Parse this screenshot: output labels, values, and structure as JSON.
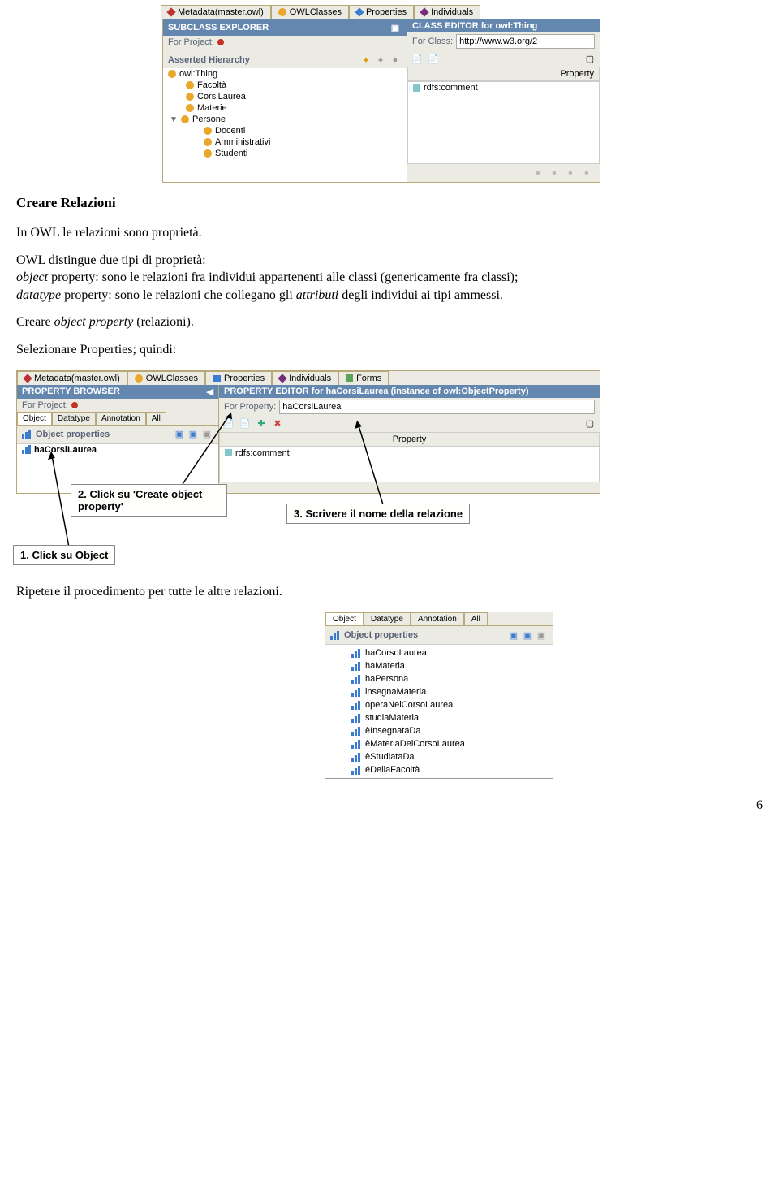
{
  "screenshot1": {
    "tabs": [
      {
        "label": "Metadata(master.owl)",
        "icon_color": "#b33"
      },
      {
        "label": "OWLClasses",
        "icon_color": "#e9a72b"
      },
      {
        "label": "Properties",
        "icon_color": "#3b7ccf"
      },
      {
        "label": "Individuals",
        "icon_color": "#7b2b7b"
      }
    ],
    "left_panel": {
      "title": "SUBCLASS EXPLORER",
      "for_project_label": "For Project:",
      "section": "Asserted Hierarchy",
      "tree": [
        {
          "label": "owl:Thing",
          "indent": 0,
          "expand": true
        },
        {
          "label": "Facoltà",
          "indent": 1
        },
        {
          "label": "CorsiLaurea",
          "indent": 1
        },
        {
          "label": "Materie",
          "indent": 1
        },
        {
          "label": "Persone",
          "indent": 1,
          "arrow": true
        },
        {
          "label": "Docenti",
          "indent": 2
        },
        {
          "label": "Amministrativi",
          "indent": 2
        },
        {
          "label": "Studenti",
          "indent": 2
        }
      ]
    },
    "right_panel": {
      "title": "CLASS EDITOR for owl:Thing",
      "for_class_label": "For Class:",
      "for_class_value": "http://www.w3.org/2",
      "property_header": "Property",
      "rows": [
        {
          "label": "rdfs:comment"
        }
      ]
    }
  },
  "t1_heading": "Creare Relazioni",
  "t1_p1": "In OWL le relazioni sono proprietà.",
  "t1_p2_pre": "OWL distingue due tipi di proprietà:",
  "t1_obj_b": "object",
  "t1_obj_rest": " property: sono le relazioni fra individui appartenenti alle classi (genericamente fra classi);",
  "t1_dt_b": "datatype",
  "t1_dt_rest": "  property: sono le relazioni che collegano gli ",
  "t1_attr": "attributi",
  "t1_dt_end": " degli individui ai tipi ammessi.",
  "t1_create": "Creare ",
  "t1_create_i": "object property",
  "t1_create_end": " (relazioni).",
  "t1_select": "Selezionare Properties; quindi:",
  "screenshot2": {
    "tabs": [
      {
        "label": "Metadata(master.owl)",
        "icon_color": "#b33"
      },
      {
        "label": "OWLClasses",
        "icon_color": "#e9a72b"
      },
      {
        "label": "Properties",
        "icon_color": "#3b7ccf",
        "active": true
      },
      {
        "label": "Individuals",
        "icon_color": "#7b2b7b"
      },
      {
        "label": "Forms",
        "icon_color": "#5aa45a"
      }
    ],
    "left_panel": {
      "title": "PROPERTY BROWSER",
      "for_project_label": "For Project:",
      "subtabs": [
        "Object",
        "Datatype",
        "Annotation",
        "All"
      ],
      "list_header": "Object properties",
      "list_items": [
        "haCorsiLaurea"
      ]
    },
    "right_panel": {
      "title": "PROPERTY EDITOR for haCorsiLaurea   (instance of owl:ObjectProperty)",
      "for_property_label": "For Property:",
      "for_property_value": "haCorsiLaurea",
      "property_header": "Property",
      "rows": [
        {
          "label": "rdfs:comment"
        }
      ]
    },
    "callouts": {
      "c1": "1. Click su Object",
      "c2": "2. Click su 'Create object property'",
      "c3": "3. Scrivere il nome della relazione"
    }
  },
  "t2_repeat": "Ripetere il procedimento per tutte le altre relazioni.",
  "screenshot3": {
    "subtabs": [
      "Object",
      "Datatype",
      "Annotation",
      "All"
    ],
    "list_header": "Object properties",
    "items": [
      "haCorsoLaurea",
      "haMateria",
      "haPersona",
      "insegnaMateria",
      "operaNelCorsoLaurea",
      "studiaMateria",
      "èInsegnataDa",
      "èMateriaDelCorsoLaurea",
      "èStudiataDa",
      "éDellaFacoltà"
    ]
  },
  "page_number": "6"
}
